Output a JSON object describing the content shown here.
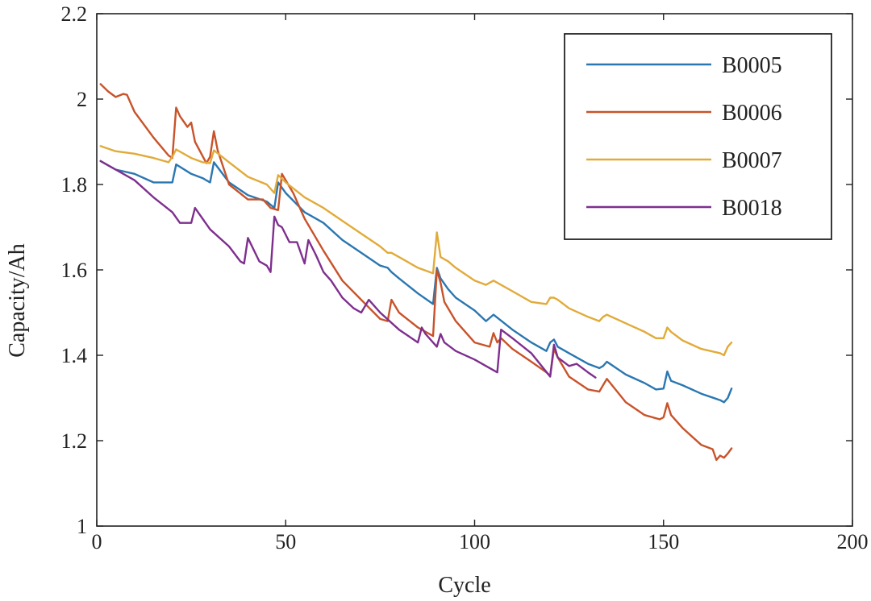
{
  "chart_data": {
    "type": "line",
    "title": "",
    "xlabel": "Cycle",
    "ylabel": "Capacity/Ah",
    "xlim": [
      0,
      200
    ],
    "ylim": [
      1.0,
      2.2
    ],
    "xticks": [
      0,
      50,
      100,
      150,
      200
    ],
    "yticks": [
      1.0,
      1.2,
      1.4,
      1.6,
      1.8,
      2.0,
      2.2
    ],
    "xtick_labels": [
      "0",
      "50",
      "100",
      "150",
      "200"
    ],
    "ytick_labels": [
      "1",
      "1.2",
      "1.4",
      "1.6",
      "1.8",
      "2",
      "2.2"
    ],
    "grid": false,
    "legend_position": "top-right",
    "series": [
      {
        "name": "B0005",
        "color": "#2a77b1",
        "x": [
          1,
          5,
          10,
          15,
          19,
          20,
          21,
          25,
          28,
          30,
          31,
          35,
          40,
          45,
          47,
          48,
          50,
          55,
          60,
          65,
          70,
          75,
          77,
          78,
          80,
          85,
          89,
          90,
          91,
          93,
          95,
          100,
          103,
          105,
          110,
          115,
          119,
          120,
          121,
          122,
          125,
          130,
          133,
          134,
          135,
          140,
          145,
          148,
          150,
          151,
          152,
          155,
          160,
          165,
          166,
          167,
          168
        ],
        "values": [
          1.855,
          1.835,
          1.825,
          1.805,
          1.805,
          1.805,
          1.847,
          1.825,
          1.815,
          1.805,
          1.852,
          1.805,
          1.775,
          1.76,
          1.745,
          1.805,
          1.78,
          1.735,
          1.71,
          1.67,
          1.64,
          1.61,
          1.605,
          1.595,
          1.58,
          1.545,
          1.52,
          1.605,
          1.58,
          1.555,
          1.535,
          1.505,
          1.48,
          1.495,
          1.46,
          1.43,
          1.41,
          1.43,
          1.437,
          1.42,
          1.405,
          1.38,
          1.37,
          1.375,
          1.385,
          1.355,
          1.335,
          1.32,
          1.322,
          1.362,
          1.34,
          1.33,
          1.31,
          1.295,
          1.29,
          1.3,
          1.322
        ]
      },
      {
        "name": "B0006",
        "color": "#c8532a",
        "x": [
          1,
          3,
          5,
          7,
          8,
          10,
          15,
          19,
          20,
          21,
          22,
          24,
          25,
          26,
          29,
          30,
          31,
          32,
          35,
          40,
          44,
          46,
          48,
          49,
          52,
          55,
          60,
          65,
          70,
          75,
          77,
          78,
          80,
          85,
          89,
          90,
          91,
          92,
          95,
          100,
          104,
          105,
          106,
          107,
          110,
          115,
          119,
          120,
          121,
          122,
          125,
          130,
          133,
          134,
          135,
          140,
          145,
          149,
          150,
          151,
          152,
          155,
          160,
          163,
          164,
          165,
          166,
          167,
          168
        ],
        "values": [
          2.035,
          2.018,
          2.005,
          2.012,
          2.01,
          1.97,
          1.91,
          1.868,
          1.862,
          1.98,
          1.96,
          1.935,
          1.945,
          1.9,
          1.85,
          1.865,
          1.925,
          1.88,
          1.8,
          1.765,
          1.765,
          1.745,
          1.74,
          1.825,
          1.78,
          1.72,
          1.645,
          1.575,
          1.53,
          1.485,
          1.48,
          1.53,
          1.5,
          1.465,
          1.445,
          1.6,
          1.57,
          1.525,
          1.48,
          1.43,
          1.42,
          1.452,
          1.43,
          1.44,
          1.415,
          1.385,
          1.36,
          1.352,
          1.415,
          1.395,
          1.35,
          1.32,
          1.315,
          1.33,
          1.345,
          1.29,
          1.26,
          1.25,
          1.255,
          1.288,
          1.26,
          1.23,
          1.19,
          1.18,
          1.155,
          1.165,
          1.16,
          1.17,
          1.182
        ]
      },
      {
        "name": "B0007",
        "color": "#e1ab3a",
        "x": [
          1,
          5,
          10,
          15,
          19,
          20,
          21,
          25,
          28,
          30,
          31,
          35,
          40,
          45,
          47,
          48,
          50,
          55,
          60,
          65,
          70,
          75,
          77,
          78,
          80,
          85,
          89,
          90,
          91,
          93,
          95,
          100,
          103,
          105,
          110,
          115,
          119,
          120,
          121,
          122,
          125,
          130,
          133,
          134,
          135,
          140,
          145,
          148,
          150,
          151,
          152,
          155,
          160,
          165,
          166,
          167,
          168
        ],
        "values": [
          1.89,
          1.878,
          1.872,
          1.862,
          1.852,
          1.865,
          1.882,
          1.862,
          1.852,
          1.85,
          1.88,
          1.852,
          1.818,
          1.8,
          1.78,
          1.822,
          1.805,
          1.77,
          1.745,
          1.715,
          1.685,
          1.655,
          1.64,
          1.64,
          1.63,
          1.605,
          1.592,
          1.688,
          1.63,
          1.62,
          1.605,
          1.575,
          1.565,
          1.575,
          1.55,
          1.525,
          1.52,
          1.535,
          1.535,
          1.53,
          1.51,
          1.49,
          1.48,
          1.49,
          1.495,
          1.475,
          1.455,
          1.44,
          1.44,
          1.465,
          1.455,
          1.435,
          1.415,
          1.405,
          1.4,
          1.42,
          1.43
        ]
      },
      {
        "name": "B0018",
        "color": "#7e2f8e",
        "x": [
          1,
          5,
          10,
          15,
          20,
          22,
          25,
          26,
          30,
          35,
          38,
          39,
          40,
          43,
          45,
          46,
          47,
          48,
          49,
          51,
          53,
          55,
          56,
          58,
          60,
          62,
          65,
          68,
          70,
          72,
          75,
          80,
          85,
          86,
          87,
          90,
          91,
          92,
          95,
          100,
          103,
          105,
          106,
          107,
          110,
          115,
          120,
          121,
          122,
          125,
          127,
          130,
          132
        ],
        "values": [
          1.855,
          1.835,
          1.81,
          1.77,
          1.735,
          1.71,
          1.71,
          1.745,
          1.695,
          1.655,
          1.62,
          1.615,
          1.675,
          1.62,
          1.61,
          1.595,
          1.725,
          1.705,
          1.7,
          1.665,
          1.665,
          1.615,
          1.67,
          1.635,
          1.595,
          1.575,
          1.535,
          1.51,
          1.5,
          1.53,
          1.5,
          1.46,
          1.43,
          1.465,
          1.45,
          1.42,
          1.45,
          1.43,
          1.41,
          1.39,
          1.375,
          1.365,
          1.36,
          1.46,
          1.44,
          1.405,
          1.35,
          1.425,
          1.395,
          1.375,
          1.38,
          1.36,
          1.348
        ]
      }
    ]
  }
}
